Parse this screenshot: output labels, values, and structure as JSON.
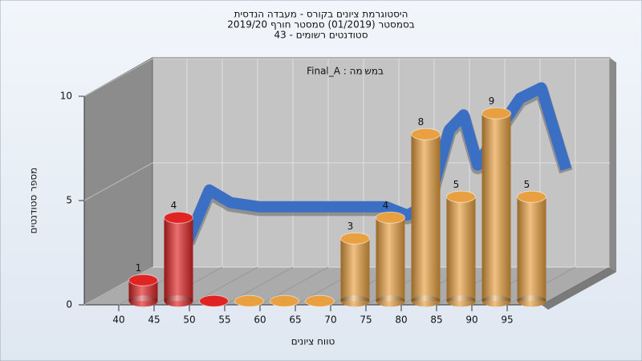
{
  "chart_data": {
    "type": "bar3d",
    "title": [
      "היסטוגרמת ציונים בקורס - מעבדה הנדסית",
      "בסמסטר  (01/2019)  סמסטר חורף 2019/20",
      "סטודנטים רשומים - 43"
    ],
    "annotation": "במשימה : Final_A",
    "y_label": "מספר סטודנטים",
    "x_label": "טווח ציונים",
    "categories": [
      40,
      45,
      50,
      55,
      60,
      65,
      70,
      75,
      80,
      85,
      90,
      95
    ],
    "values": [
      1,
      4,
      0,
      0,
      0,
      0,
      3,
      4,
      8,
      5,
      9,
      5
    ],
    "colors": [
      "#e02424",
      "#e02424",
      "#e02424",
      "#e8a040",
      "#e8a040",
      "#e8a040",
      "#e8a040",
      "#e8a040",
      "#e8a040",
      "#e8a040",
      "#e8a040",
      "#e8a040"
    ],
    "curve": {
      "color": "#3a6fc4",
      "flat_color": "#6e6e6e",
      "x": [
        45,
        48,
        51,
        55,
        60,
        65,
        70,
        73,
        76,
        79,
        82,
        84,
        86,
        89,
        92,
        95,
        98.5
      ],
      "values": [
        2.2,
        4.6,
        4.0,
        3.8,
        3.8,
        3.8,
        3.8,
        3.8,
        3.4,
        3.9,
        7.5,
        8.2,
        5.8,
        7.5,
        9.0,
        9.5,
        5.6
      ]
    },
    "ylim": [
      0,
      10
    ],
    "yticks": [
      0,
      5,
      10
    ],
    "grid": true
  }
}
